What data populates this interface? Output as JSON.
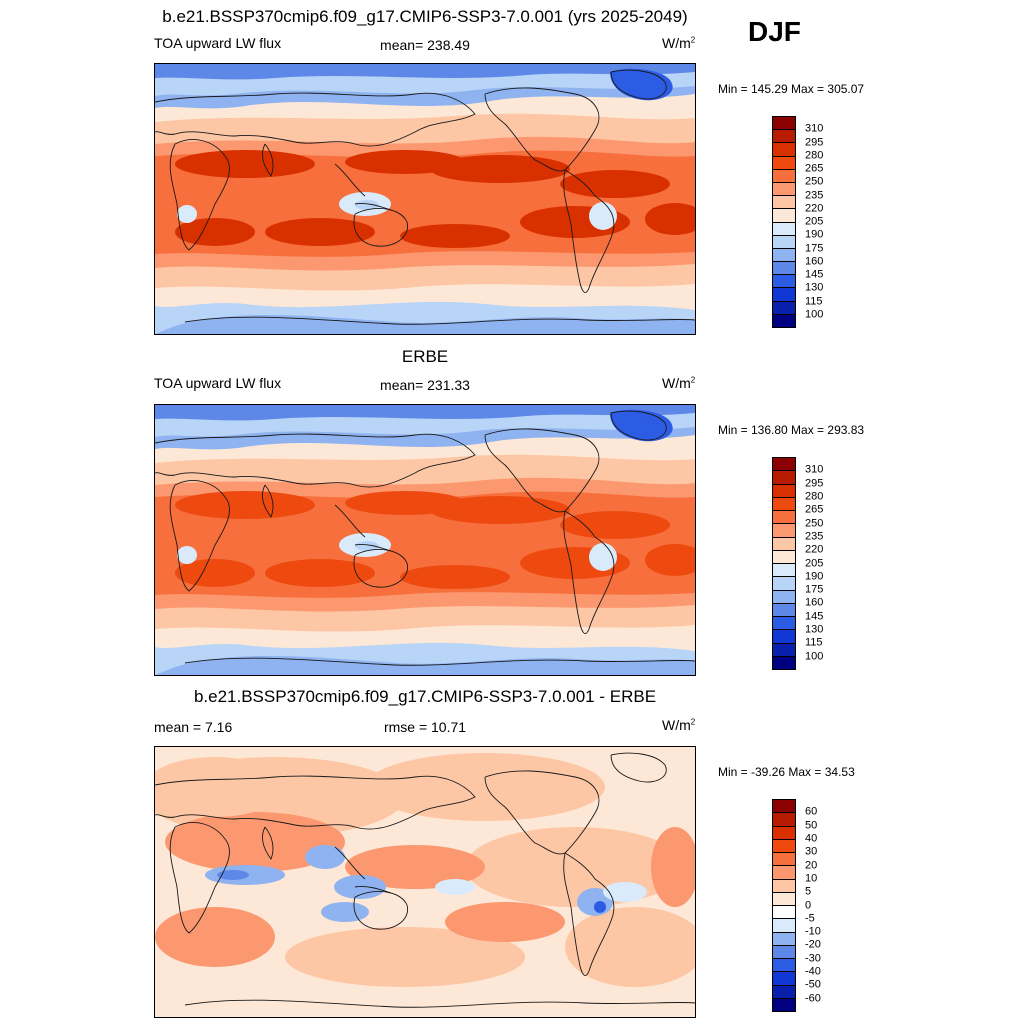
{
  "figure": {
    "season": "DJF",
    "panels": [
      {
        "title": "b.e21.BSSP370cmip6.f09_g17.CMIP6-SSP3-7.0.001 (yrs 2025-2049)",
        "left_label": "TOA upward LW flux",
        "center_label": "mean= 238.49",
        "units_base": "W/m",
        "units_exp": "2",
        "minmax": "Min = 145.29 Max = 305.07",
        "colorbar_labels": [
          "310",
          "295",
          "280",
          "265",
          "250",
          "235",
          "220",
          "205",
          "190",
          "175",
          "160",
          "145",
          "130",
          "115",
          "100"
        ],
        "colorbar_colors": [
          "#8b0000",
          "#b81c00",
          "#d93000",
          "#ee4a10",
          "#f76f3c",
          "#fb9870",
          "#fdc6a4",
          "#fde8d7",
          "#d9ebfb",
          "#b8d4f7",
          "#8fb3f0",
          "#5e88e8",
          "#2d5ce4",
          "#1238d4",
          "#0820ac",
          "#000080"
        ],
        "field": "lw"
      },
      {
        "title": "ERBE",
        "left_label": "TOA upward LW flux",
        "center_label": "mean= 231.33",
        "units_base": "W/m",
        "units_exp": "2",
        "minmax": "Min = 136.80 Max = 293.83",
        "colorbar_labels": [
          "310",
          "295",
          "280",
          "265",
          "250",
          "235",
          "220",
          "205",
          "190",
          "175",
          "160",
          "145",
          "130",
          "115",
          "100"
        ],
        "colorbar_colors": [
          "#8b0000",
          "#b81c00",
          "#d93000",
          "#ee4a10",
          "#f76f3c",
          "#fb9870",
          "#fdc6a4",
          "#fde8d7",
          "#d9ebfb",
          "#b8d4f7",
          "#8fb3f0",
          "#5e88e8",
          "#2d5ce4",
          "#1238d4",
          "#0820ac",
          "#000080"
        ],
        "field": "lw2"
      },
      {
        "title": "b.e21.BSSP370cmip6.f09_g17.CMIP6-SSP3-7.0.001 - ERBE",
        "left_label": "mean =   7.16",
        "center_label": "rmse =  10.71",
        "units_base": "W/m",
        "units_exp": "2",
        "minmax": "Min = -39.26 Max =  34.53",
        "colorbar_labels": [
          "60",
          "50",
          "40",
          "30",
          "20",
          "10",
          "5",
          "0",
          "-5",
          "-10",
          "-20",
          "-30",
          "-40",
          "-50",
          "-60"
        ],
        "colorbar_colors": [
          "#8b0000",
          "#b81c00",
          "#d93000",
          "#ee4a10",
          "#f76f3c",
          "#fb9870",
          "#fdc6a4",
          "#fde8d7",
          "#ffffff",
          "#d9ebfb",
          "#8fb3f0",
          "#5e88e8",
          "#2d5ce4",
          "#1238d4",
          "#0820ac",
          "#000080"
        ],
        "field": "diff"
      }
    ]
  }
}
